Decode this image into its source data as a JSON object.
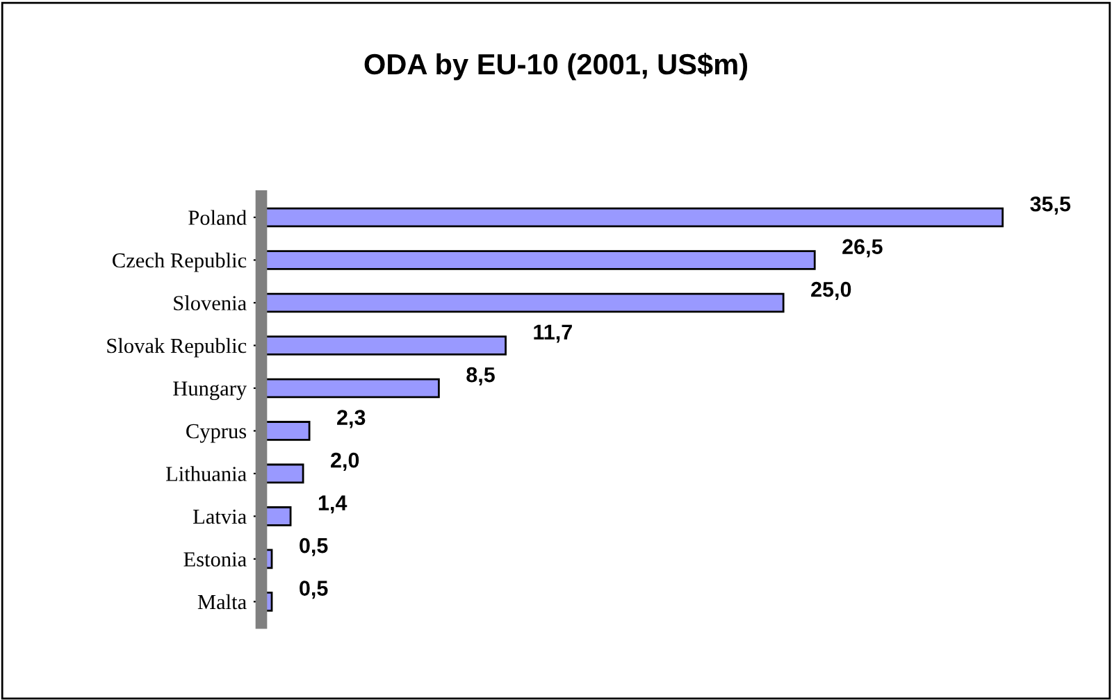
{
  "chart_data": {
    "type": "bar",
    "orientation": "horizontal",
    "title": "ODA by EU-10 (2001, US$m)",
    "categories": [
      "Poland",
      "Czech Republic",
      "Slovenia",
      "Slovak Republic",
      "Hungary",
      "Cyprus",
      "Lithuania",
      "Latvia",
      "Estonia",
      "Malta"
    ],
    "values": [
      35.5,
      26.5,
      25.0,
      11.7,
      8.5,
      2.3,
      2.0,
      1.4,
      0.5,
      0.5
    ],
    "value_labels": [
      "35,5",
      "26,5",
      "25,0",
      "11,7",
      "8,5",
      "2,3",
      "2,0",
      "1,4",
      "0,5",
      "0,5"
    ],
    "color": "#9999ff",
    "grid": false,
    "legend": false
  }
}
